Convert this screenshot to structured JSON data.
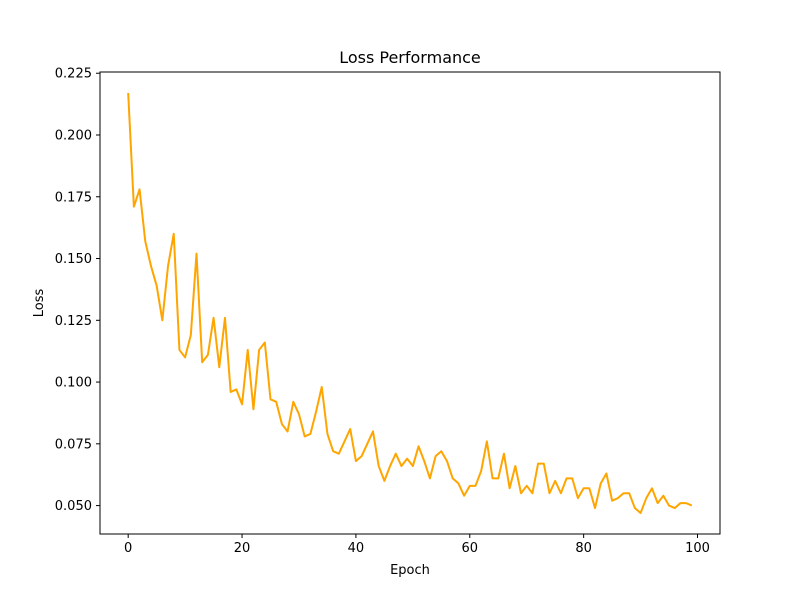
{
  "chart_data": {
    "type": "line",
    "title": "Loss Performance",
    "xlabel": "Epoch",
    "ylabel": "Loss",
    "xlim": [
      -4.95,
      103.95
    ],
    "ylim": [
      0.0385,
      0.2255
    ],
    "x_ticks": [
      0,
      20,
      40,
      60,
      80,
      100
    ],
    "y_ticks": [
      0.05,
      0.075,
      0.1,
      0.125,
      0.15,
      0.175,
      0.2,
      0.225
    ],
    "x_tick_labels": [
      "0",
      "20",
      "40",
      "60",
      "80",
      "100"
    ],
    "y_tick_labels": [
      "0.050",
      "0.075",
      "0.100",
      "0.125",
      "0.150",
      "0.175",
      "0.200",
      "0.225"
    ],
    "grid": false,
    "legend": "none",
    "series": [
      {
        "color": "#ffa500",
        "x": [
          0,
          1,
          2,
          3,
          4,
          5,
          6,
          7,
          8,
          9,
          10,
          11,
          12,
          13,
          14,
          15,
          16,
          17,
          18,
          19,
          20,
          21,
          22,
          23,
          24,
          25,
          26,
          27,
          28,
          29,
          30,
          31,
          32,
          33,
          34,
          35,
          36,
          37,
          38,
          39,
          40,
          41,
          42,
          43,
          44,
          45,
          46,
          47,
          48,
          49,
          50,
          51,
          52,
          53,
          54,
          55,
          56,
          57,
          58,
          59,
          60,
          61,
          62,
          63,
          64,
          65,
          66,
          67,
          68,
          69,
          70,
          71,
          72,
          73,
          74,
          75,
          76,
          77,
          78,
          79,
          80,
          81,
          82,
          83,
          84,
          85,
          86,
          87,
          88,
          89,
          90,
          91,
          92,
          93,
          94,
          95,
          96,
          97,
          98,
          99
        ],
        "values": [
          0.217,
          0.171,
          0.178,
          0.157,
          0.147,
          0.139,
          0.125,
          0.147,
          0.16,
          0.113,
          0.11,
          0.119,
          0.152,
          0.108,
          0.111,
          0.126,
          0.106,
          0.126,
          0.096,
          0.097,
          0.091,
          0.113,
          0.089,
          0.113,
          0.116,
          0.093,
          0.092,
          0.083,
          0.08,
          0.092,
          0.087,
          0.078,
          0.079,
          0.088,
          0.098,
          0.079,
          0.072,
          0.071,
          0.076,
          0.081,
          0.068,
          0.07,
          0.075,
          0.08,
          0.066,
          0.06,
          0.066,
          0.071,
          0.066,
          0.069,
          0.066,
          0.074,
          0.068,
          0.061,
          0.07,
          0.072,
          0.068,
          0.061,
          0.059,
          0.054,
          0.058,
          0.058,
          0.064,
          0.076,
          0.061,
          0.061,
          0.071,
          0.057,
          0.066,
          0.055,
          0.058,
          0.055,
          0.067,
          0.067,
          0.055,
          0.06,
          0.055,
          0.061,
          0.061,
          0.053,
          0.057,
          0.057,
          0.049,
          0.059,
          0.063,
          0.052,
          0.053,
          0.055,
          0.055,
          0.049,
          0.047,
          0.053,
          0.057,
          0.051,
          0.054,
          0.05,
          0.049,
          0.051,
          0.051,
          0.05
        ]
      }
    ]
  }
}
